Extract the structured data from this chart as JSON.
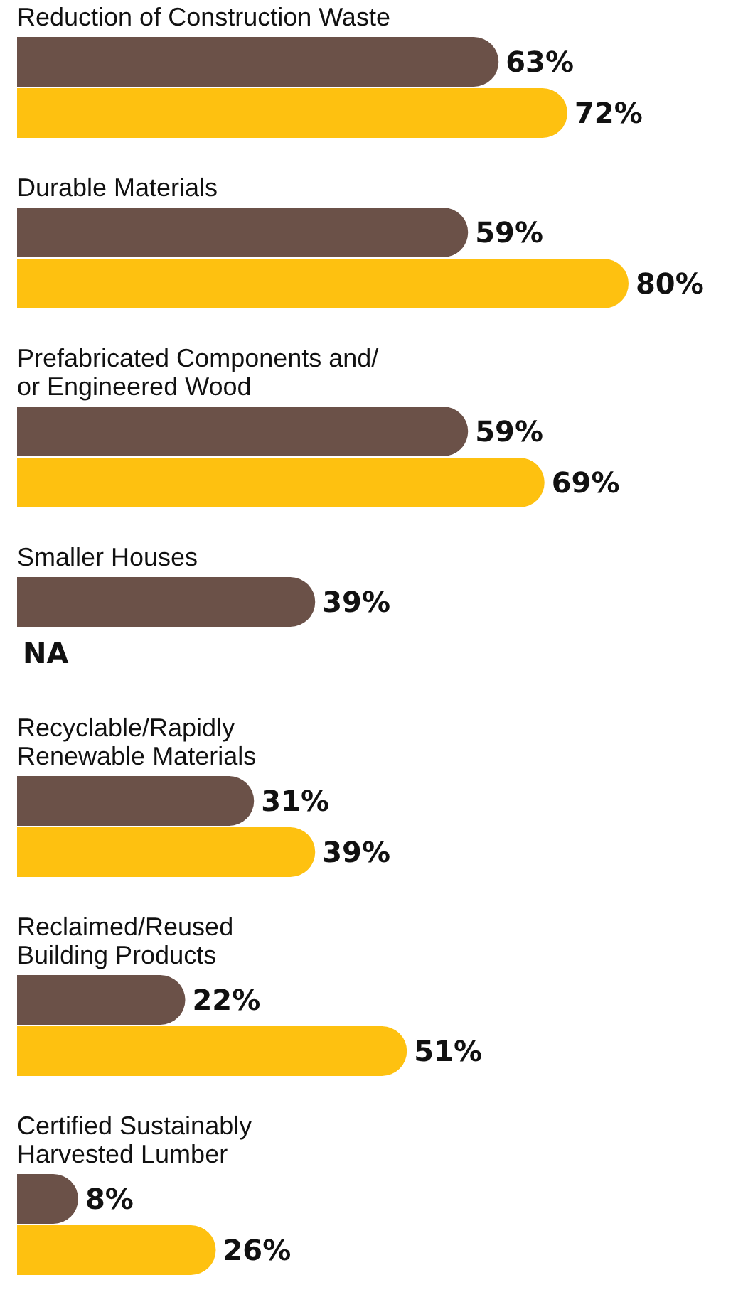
{
  "chart_data": {
    "type": "bar",
    "orientation": "horizontal",
    "categories": [
      "Reduction of Construction Waste",
      "Durable Materials",
      "Prefabricated Components and/\nor Engineered Wood",
      "Smaller Houses",
      "Recyclable/Rapidly\nRenewable Materials",
      "Reclaimed/Reused\nBuilding Products",
      "Certified Sustainably\nHarvested Lumber"
    ],
    "series": [
      {
        "color": "#6b5148",
        "values": [
          63,
          59,
          59,
          39,
          31,
          22,
          8
        ],
        "value_labels": [
          "63%",
          "59%",
          "59%",
          "39%",
          "31%",
          "22%",
          "8%"
        ]
      },
      {
        "color": "#fec110",
        "values": [
          72,
          80,
          69,
          null,
          39,
          51,
          26
        ],
        "value_labels": [
          "72%",
          "80%",
          "69%",
          "NA",
          "39%",
          "51%",
          "26%"
        ]
      }
    ]
  }
}
